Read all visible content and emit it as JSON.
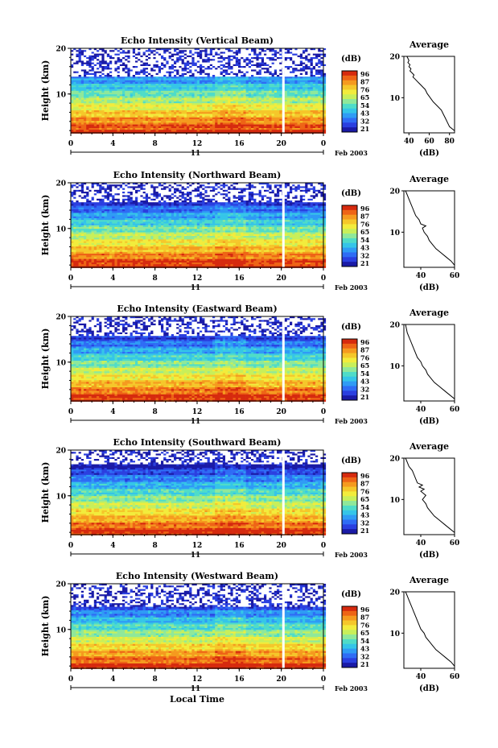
{
  "chart_data": [
    {
      "type": "heatmap",
      "title": "Echo Intensity (Vertical Beam)",
      "ylabel": "Height (km)",
      "yticks": [
        "20",
        "10"
      ],
      "xticks": [
        "0",
        "4",
        "8",
        "12",
        "16",
        "20",
        "0"
      ],
      "date_day": "11",
      "date_month": "Feb 2003",
      "colorbar_unit": "(dB)",
      "colorbar_ticks": [
        "96",
        "87",
        "76",
        "65",
        "54",
        "43",
        "32",
        "21"
      ],
      "gap_at_hour": 20.2,
      "clear_above_km": 14,
      "profile": {
        "title": "Average",
        "xlabel": "(dB)",
        "xticks": [
          "40",
          "60",
          "80"
        ],
        "xlim": [
          35,
          85
        ],
        "yticks": [
          "20",
          "10"
        ],
        "ylim": [
          1.5,
          20
        ],
        "x_points": [
          85,
          80,
          78,
          76,
          74,
          72,
          68,
          64,
          61,
          58,
          56,
          54,
          52,
          50,
          48,
          46,
          44,
          45,
          43,
          41,
          42,
          40,
          41,
          39,
          40,
          38
        ],
        "y_points": [
          2,
          3,
          4,
          5,
          6,
          7,
          8,
          9,
          10,
          11,
          12,
          12.5,
          13,
          13.5,
          14,
          14.5,
          15,
          15.5,
          16,
          16.5,
          17,
          17.5,
          18,
          18.5,
          19,
          20
        ]
      }
    },
    {
      "type": "heatmap",
      "title": "Echo Intensity (Northward Beam)",
      "ylabel": "Height (km)",
      "yticks": [
        "20",
        "10"
      ],
      "xticks": [
        "0",
        "4",
        "8",
        "12",
        "16",
        "20",
        "0"
      ],
      "date_day": "11",
      "date_month": "Feb 2003",
      "colorbar_unit": "(dB)",
      "colorbar_ticks": [
        "96",
        "87",
        "76",
        "65",
        "54",
        "43",
        "32",
        "21"
      ],
      "gap_at_hour": 20.2,
      "clear_above_km": 16,
      "profile": {
        "title": "Average",
        "xlabel": "(dB)",
        "xticks": [
          "40",
          "60"
        ],
        "xlim": [
          30,
          60
        ],
        "yticks": [
          "20",
          "10"
        ],
        "ylim": [
          1.5,
          20
        ],
        "x_points": [
          60,
          58,
          55,
          52,
          49,
          47,
          45,
          44,
          42,
          41,
          43,
          40,
          39,
          37,
          36,
          35,
          34,
          33,
          32,
          31
        ],
        "y_points": [
          2,
          3,
          4,
          5,
          6,
          7,
          8,
          9,
          10,
          11,
          11.5,
          12,
          13,
          14,
          15,
          16,
          17,
          18,
          19,
          20
        ]
      }
    },
    {
      "type": "heatmap",
      "title": "Echo Intensity (Eastward Beam)",
      "ylabel": "Height (km)",
      "yticks": [
        "20",
        "10"
      ],
      "xticks": [
        "0",
        "4",
        "8",
        "12",
        "16",
        "20",
        "0"
      ],
      "date_day": "11",
      "date_month": "Feb 2003",
      "colorbar_unit": "(dB)",
      "colorbar_ticks": [
        "96",
        "87",
        "76",
        "65",
        "54",
        "43",
        "32",
        "21"
      ],
      "gap_at_hour": 20.2,
      "clear_above_km": 16,
      "profile": {
        "title": "Average",
        "xlabel": "(dB)",
        "xticks": [
          "40",
          "60"
        ],
        "xlim": [
          30,
          60
        ],
        "yticks": [
          "20",
          "10"
        ],
        "ylim": [
          1.5,
          20
        ],
        "x_points": [
          60,
          57,
          54,
          51,
          48,
          46,
          44,
          43,
          41,
          40,
          38,
          37,
          36,
          35,
          34,
          33,
          32,
          31
        ],
        "y_points": [
          2,
          3,
          4,
          5,
          6,
          7,
          8,
          9,
          10,
          11,
          12,
          13,
          14,
          15,
          16,
          17,
          18,
          20
        ]
      }
    },
    {
      "type": "heatmap",
      "title": "Echo Intensity (Southward Beam)",
      "ylabel": "Height (km)",
      "yticks": [
        "20",
        "10"
      ],
      "xticks": [
        "0",
        "4",
        "8",
        "12",
        "16",
        "20",
        "0"
      ],
      "date_day": "11",
      "date_month": "Feb 2003",
      "colorbar_unit": "(dB)",
      "colorbar_ticks": [
        "96",
        "87",
        "76",
        "65",
        "54",
        "43",
        "32",
        "21"
      ],
      "gap_at_hour": 20.2,
      "clear_above_km": 17,
      "profile": {
        "title": "Average",
        "xlabel": "(dB)",
        "xticks": [
          "40",
          "60"
        ],
        "xlim": [
          30,
          60
        ],
        "yticks": [
          "20",
          "10"
        ],
        "ylim": [
          1.5,
          20
        ],
        "x_points": [
          60,
          57,
          54,
          51,
          48,
          46,
          44,
          43,
          41,
          43,
          40,
          42,
          39,
          41,
          38,
          37,
          36,
          35,
          33,
          32,
          31
        ],
        "y_points": [
          2,
          3,
          4,
          5,
          6,
          7,
          8,
          9,
          10,
          11,
          12,
          12.5,
          13,
          13.5,
          14,
          15,
          16,
          17,
          18,
          19,
          20
        ]
      }
    },
    {
      "type": "heatmap",
      "title": "Echo Intensity (Westward Beam)",
      "ylabel": "Height (km)",
      "yticks": [
        "20",
        "10"
      ],
      "xticks": [
        "0",
        "4",
        "8",
        "12",
        "16",
        "20",
        "0"
      ],
      "date_day": "11",
      "date_month": "Feb 2003",
      "xlabel": "Local Time",
      "colorbar_unit": "(dB)",
      "colorbar_ticks": [
        "96",
        "87",
        "76",
        "65",
        "54",
        "43",
        "32",
        "21"
      ],
      "gap_at_hour": 20.2,
      "clear_above_km": 15,
      "profile": {
        "title": "Average",
        "xlabel": "(dB)",
        "xticks": [
          "40",
          "60"
        ],
        "xlim": [
          30,
          60
        ],
        "yticks": [
          "20",
          "10"
        ],
        "ylim": [
          1.5,
          20
        ],
        "x_points": [
          60,
          58,
          55,
          52,
          49,
          47,
          45,
          43,
          42,
          40,
          39,
          38,
          37,
          36,
          35,
          34,
          33,
          32,
          31
        ],
        "y_points": [
          2,
          3,
          4,
          5,
          6,
          7,
          8,
          9,
          10,
          11,
          12,
          13,
          14,
          15,
          16,
          17,
          18,
          19,
          20
        ]
      }
    }
  ]
}
